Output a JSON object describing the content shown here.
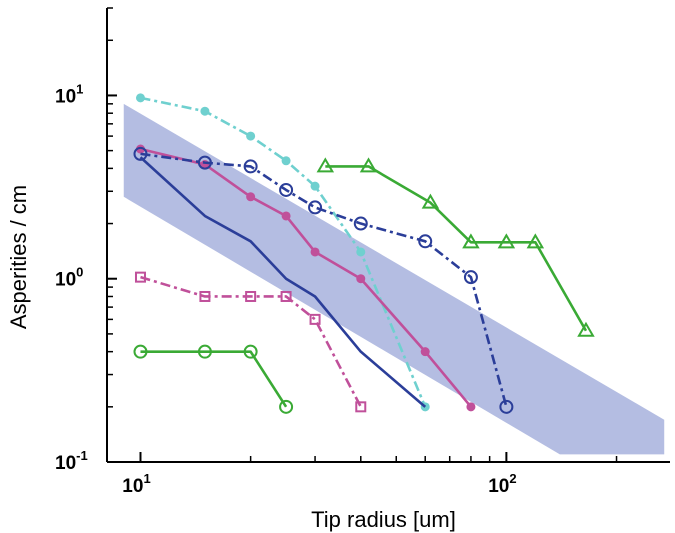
{
  "chart_data": {
    "type": "line",
    "title": "",
    "xlabel": "Tip radius [um]",
    "ylabel": "Asperities / cm",
    "xscale": "log",
    "yscale": "log",
    "xlim": [
      8.1,
      280
    ],
    "ylim": [
      0.1,
      30
    ],
    "grid": false,
    "legend": "none",
    "xticks": [
      {
        "base": "10",
        "exp": "1",
        "value": 10
      },
      {
        "base": "10",
        "exp": "2",
        "value": 100
      }
    ],
    "yticks": [
      {
        "base": "10",
        "exp": "-1",
        "value": 0.1
      },
      {
        "base": "10",
        "exp": "0",
        "value": 1
      },
      {
        "base": "10",
        "exp": "1",
        "value": 10
      }
    ],
    "band": {
      "color": "#b4bde2",
      "upper": [
        {
          "x": 9,
          "y": 9
        },
        {
          "x": 270,
          "y": 0.17
        }
      ],
      "lower": [
        {
          "x": 9,
          "y": 2.8
        },
        {
          "x": 140,
          "y": 0.11
        },
        {
          "x": 270,
          "y": 0.11
        }
      ]
    },
    "series": [
      {
        "color": "#6fd0cf",
        "style": "dashdot",
        "marker": "dot",
        "points": [
          {
            "x": 10,
            "y": 9.7
          },
          {
            "x": 15,
            "y": 8.2
          },
          {
            "x": 20,
            "y": 6
          },
          {
            "x": 25,
            "y": 4.4
          },
          {
            "x": 30,
            "y": 3.2
          },
          {
            "x": 40,
            "y": 1.4
          },
          {
            "x": 60,
            "y": 0.2
          }
        ]
      },
      {
        "color": "#c0509a",
        "style": "solid",
        "marker": "dot",
        "points": [
          {
            "x": 10,
            "y": 5.1
          },
          {
            "x": 15,
            "y": 4.2
          },
          {
            "x": 20,
            "y": 2.8
          },
          {
            "x": 25,
            "y": 2.2
          },
          {
            "x": 30,
            "y": 1.4
          },
          {
            "x": 40,
            "y": 1
          },
          {
            "x": 60,
            "y": 0.4
          },
          {
            "x": 80,
            "y": 0.2
          }
        ]
      },
      {
        "color": "#2b3e99",
        "style": "solid",
        "marker": "none",
        "points": [
          {
            "x": 10,
            "y": 4.6
          },
          {
            "x": 15,
            "y": 2.2
          },
          {
            "x": 20,
            "y": 1.6
          },
          {
            "x": 25,
            "y": 1
          },
          {
            "x": 30,
            "y": 0.8
          },
          {
            "x": 40,
            "y": 0.4
          },
          {
            "x": 60,
            "y": 0.2
          }
        ]
      },
      {
        "color": "#2b3e99",
        "style": "dashdot",
        "marker": "circle",
        "points": [
          {
            "x": 10,
            "y": 4.8
          },
          {
            "x": 15,
            "y": 4.3
          },
          {
            "x": 20,
            "y": 4.1
          },
          {
            "x": 25,
            "y": 3.05
          },
          {
            "x": 30,
            "y": 2.45
          },
          {
            "x": 40,
            "y": 2
          },
          {
            "x": 60,
            "y": 1.6
          },
          {
            "x": 80,
            "y": 1.02
          },
          {
            "x": 100,
            "y": 0.2
          }
        ]
      },
      {
        "color": "#3aaa35",
        "style": "solid",
        "marker": "triangle",
        "points": [
          {
            "x": 32,
            "y": 4.1
          },
          {
            "x": 42,
            "y": 4.1
          },
          {
            "x": 62,
            "y": 2.6
          },
          {
            "x": 80,
            "y": 1.58
          },
          {
            "x": 100,
            "y": 1.58
          },
          {
            "x": 120,
            "y": 1.58
          },
          {
            "x": 165,
            "y": 0.52
          }
        ]
      },
      {
        "color": "#c0509a",
        "style": "dashdot",
        "marker": "square",
        "points": [
          {
            "x": 10,
            "y": 1.02
          },
          {
            "x": 15,
            "y": 0.8
          },
          {
            "x": 20,
            "y": 0.8
          },
          {
            "x": 25,
            "y": 0.8
          },
          {
            "x": 30,
            "y": 0.6
          },
          {
            "x": 40,
            "y": 0.2
          }
        ]
      },
      {
        "color": "#3aaa35",
        "style": "solid",
        "marker": "circle",
        "points": [
          {
            "x": 10,
            "y": 0.4
          },
          {
            "x": 15,
            "y": 0.4
          },
          {
            "x": 20,
            "y": 0.4
          },
          {
            "x": 25,
            "y": 0.2
          }
        ]
      }
    ]
  }
}
